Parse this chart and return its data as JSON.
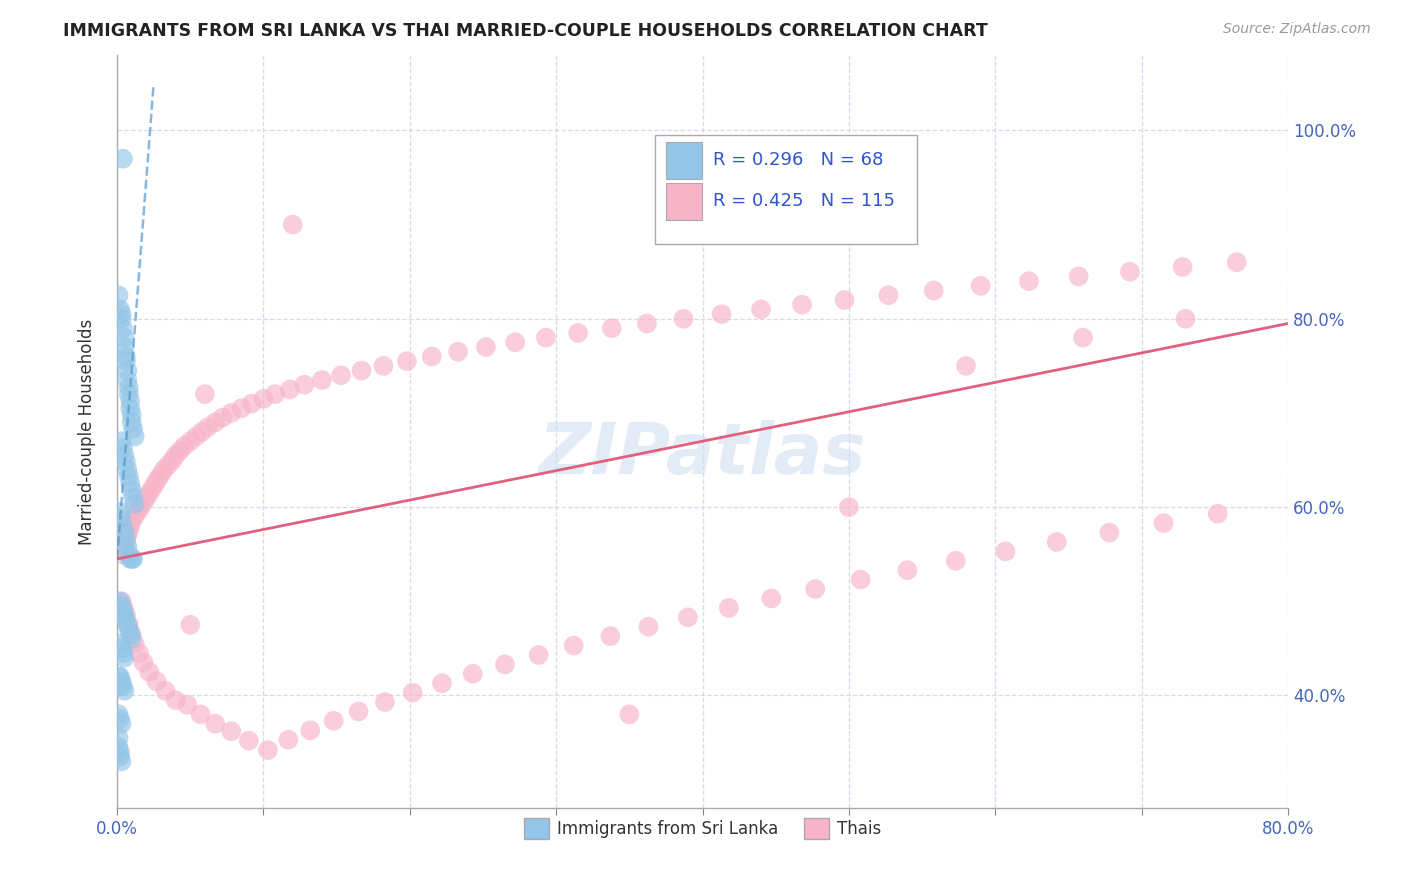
{
  "title": "IMMIGRANTS FROM SRI LANKA VS THAI MARRIED-COUPLE HOUSEHOLDS CORRELATION CHART",
  "source": "Source: ZipAtlas.com",
  "ylabel": "Married-couple Households",
  "legend_label1": "Immigrants from Sri Lanka",
  "legend_label2": "Thais",
  "R1": 0.296,
  "N1": 68,
  "R2": 0.425,
  "N2": 115,
  "color_blue": "#93c6e8",
  "color_pink": "#f7b3c8",
  "color_blue_line": "#5599cc",
  "color_pink_line": "#e06080",
  "background": "#ffffff",
  "grid_color": "#d0d8e8",
  "xlim": [
    0.0,
    0.8
  ],
  "ylim": [
    0.28,
    1.08
  ],
  "ytick_vals": [
    0.4,
    0.6,
    0.8,
    1.0
  ],
  "xtick_vals": [
    0.0,
    0.1,
    0.2,
    0.3,
    0.4,
    0.5,
    0.6,
    0.7,
    0.8
  ],
  "x_label_show": [
    0.0,
    0.8
  ],
  "blue_line_x": [
    0.0,
    0.025
  ],
  "blue_line_y": [
    0.545,
    1.05
  ],
  "pink_line_x": [
    0.0,
    0.8
  ],
  "pink_line_y": [
    0.545,
    0.795
  ],
  "blue_x": [
    0.004,
    0.001,
    0.002,
    0.003,
    0.003,
    0.004,
    0.005,
    0.005,
    0.006,
    0.006,
    0.007,
    0.007,
    0.008,
    0.008,
    0.009,
    0.009,
    0.01,
    0.01,
    0.011,
    0.012,
    0.003,
    0.004,
    0.005,
    0.006,
    0.007,
    0.008,
    0.009,
    0.01,
    0.011,
    0.012,
    0.002,
    0.003,
    0.004,
    0.005,
    0.006,
    0.007,
    0.008,
    0.009,
    0.01,
    0.011,
    0.002,
    0.003,
    0.004,
    0.005,
    0.006,
    0.007,
    0.008,
    0.009,
    0.01,
    0.002,
    0.003,
    0.004,
    0.005,
    0.002,
    0.003,
    0.004,
    0.005,
    0.001,
    0.002,
    0.003,
    0.001,
    0.001,
    0.002,
    0.002,
    0.003,
    0.002,
    0.001,
    0.002
  ],
  "blue_y": [
    0.97,
    0.825,
    0.81,
    0.805,
    0.8,
    0.79,
    0.78,
    0.77,
    0.76,
    0.755,
    0.745,
    0.735,
    0.727,
    0.72,
    0.713,
    0.705,
    0.698,
    0.69,
    0.683,
    0.675,
    0.67,
    0.663,
    0.655,
    0.648,
    0.64,
    0.633,
    0.625,
    0.618,
    0.61,
    0.603,
    0.595,
    0.588,
    0.58,
    0.573,
    0.565,
    0.558,
    0.55,
    0.545,
    0.545,
    0.545,
    0.5,
    0.495,
    0.49,
    0.485,
    0.48,
    0.475,
    0.47,
    0.465,
    0.46,
    0.455,
    0.45,
    0.445,
    0.44,
    0.42,
    0.415,
    0.41,
    0.405,
    0.38,
    0.375,
    0.37,
    0.355,
    0.345,
    0.34,
    0.335,
    0.33,
    0.49,
    0.42,
    0.41
  ],
  "pink_x": [
    0.003,
    0.004,
    0.005,
    0.006,
    0.007,
    0.008,
    0.009,
    0.01,
    0.012,
    0.014,
    0.016,
    0.018,
    0.02,
    0.022,
    0.024,
    0.026,
    0.028,
    0.03,
    0.032,
    0.035,
    0.038,
    0.04,
    0.043,
    0.046,
    0.05,
    0.054,
    0.058,
    0.062,
    0.067,
    0.072,
    0.078,
    0.085,
    0.092,
    0.1,
    0.108,
    0.118,
    0.128,
    0.14,
    0.153,
    0.167,
    0.182,
    0.198,
    0.215,
    0.233,
    0.252,
    0.272,
    0.293,
    0.315,
    0.338,
    0.362,
    0.387,
    0.413,
    0.44,
    0.468,
    0.497,
    0.527,
    0.558,
    0.59,
    0.623,
    0.657,
    0.692,
    0.728,
    0.765,
    0.003,
    0.004,
    0.005,
    0.006,
    0.008,
    0.01,
    0.012,
    0.015,
    0.018,
    0.022,
    0.027,
    0.033,
    0.04,
    0.048,
    0.057,
    0.067,
    0.078,
    0.09,
    0.103,
    0.117,
    0.132,
    0.148,
    0.165,
    0.183,
    0.202,
    0.222,
    0.243,
    0.265,
    0.288,
    0.312,
    0.337,
    0.363,
    0.39,
    0.418,
    0.447,
    0.477,
    0.508,
    0.54,
    0.573,
    0.607,
    0.642,
    0.678,
    0.715,
    0.752,
    0.06,
    0.12,
    0.5,
    0.58,
    0.66,
    0.73,
    0.05,
    0.35
  ],
  "pink_y": [
    0.55,
    0.555,
    0.56,
    0.565,
    0.57,
    0.575,
    0.58,
    0.585,
    0.59,
    0.595,
    0.6,
    0.605,
    0.61,
    0.615,
    0.62,
    0.625,
    0.63,
    0.635,
    0.64,
    0.645,
    0.65,
    0.655,
    0.66,
    0.665,
    0.67,
    0.675,
    0.68,
    0.685,
    0.69,
    0.695,
    0.7,
    0.705,
    0.71,
    0.715,
    0.72,
    0.725,
    0.73,
    0.735,
    0.74,
    0.745,
    0.75,
    0.755,
    0.76,
    0.765,
    0.77,
    0.775,
    0.78,
    0.785,
    0.79,
    0.795,
    0.8,
    0.805,
    0.81,
    0.815,
    0.82,
    0.825,
    0.83,
    0.835,
    0.84,
    0.845,
    0.85,
    0.855,
    0.86,
    0.5,
    0.495,
    0.49,
    0.485,
    0.475,
    0.465,
    0.455,
    0.445,
    0.435,
    0.425,
    0.415,
    0.405,
    0.395,
    0.39,
    0.38,
    0.37,
    0.362,
    0.352,
    0.342,
    0.353,
    0.363,
    0.373,
    0.383,
    0.393,
    0.403,
    0.413,
    0.423,
    0.433,
    0.443,
    0.453,
    0.463,
    0.473,
    0.483,
    0.493,
    0.503,
    0.513,
    0.523,
    0.533,
    0.543,
    0.553,
    0.563,
    0.573,
    0.583,
    0.593,
    0.72,
    0.9,
    0.6,
    0.75,
    0.78,
    0.8,
    0.475,
    0.38
  ]
}
